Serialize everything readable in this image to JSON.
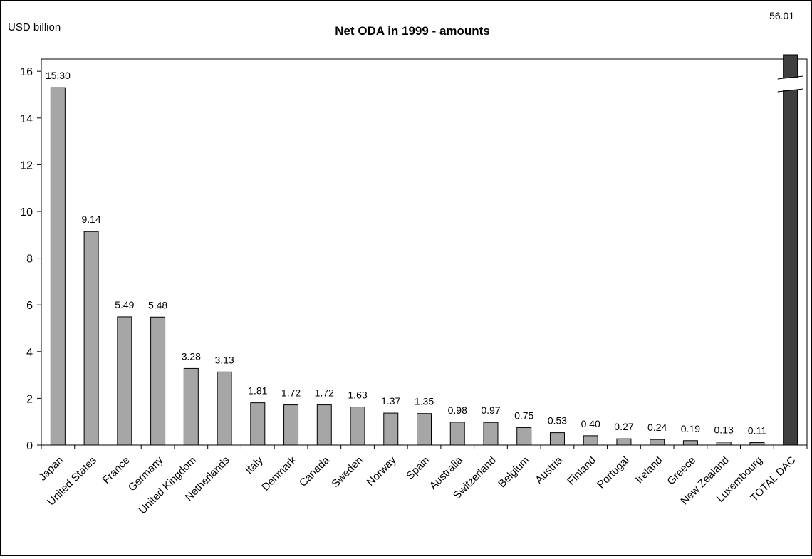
{
  "chart_data": {
    "type": "bar",
    "title": "Net ODA in 1999 - amounts",
    "ylabel": "USD billion",
    "xlabel": "",
    "ylim": [
      0,
      16.5
    ],
    "yticks": [
      "0",
      "2",
      "4",
      "6",
      "8",
      "10",
      "12",
      "14",
      "16"
    ],
    "grid": false,
    "legend": "none",
    "broken_axis_note": "TOTAL DAC bar exceeds axis; axis break shown",
    "categories": [
      "Japan",
      "United States",
      "France",
      "Germany",
      "United Kingdom",
      "Netherlands",
      "Italy",
      "Denmark",
      "Canada",
      "Sweden",
      "Norway",
      "Spain",
      "Australia",
      "Switzerland",
      "Belgium",
      "Austria",
      "Finland",
      "Portugal",
      "Ireland",
      "Greece",
      "New Zealand",
      "Luxembourg",
      "TOTAL DAC"
    ],
    "values": [
      15.3,
      9.14,
      5.49,
      5.48,
      3.28,
      3.13,
      1.81,
      1.72,
      1.72,
      1.63,
      1.37,
      1.35,
      0.98,
      0.97,
      0.75,
      0.53,
      0.4,
      0.27,
      0.24,
      0.19,
      0.13,
      0.11,
      56.01
    ],
    "value_labels": [
      "15.30",
      "9.14",
      "5.49",
      "5.48",
      "3.28",
      "3.13",
      "1.81",
      "1.72",
      "1.72",
      "1.63",
      "1.37",
      "1.35",
      "0.98",
      "0.97",
      "0.75",
      "0.53",
      "0.40",
      "0.27",
      "0.24",
      "0.19",
      "0.13",
      "0.11",
      "56.01"
    ],
    "colors": {
      "bar": "#a6a6a6",
      "total_bar": "#3f3f3f",
      "outline": "#000000"
    }
  }
}
